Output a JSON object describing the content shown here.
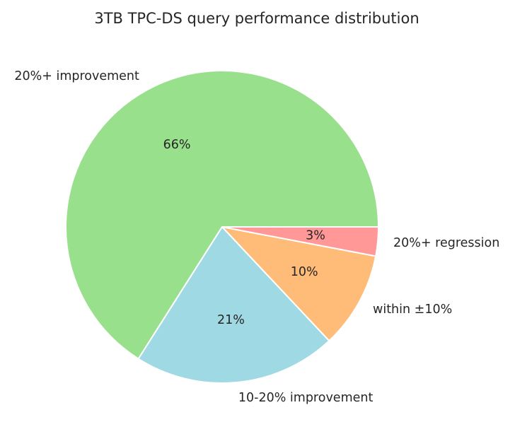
{
  "chart_data": {
    "type": "pie",
    "title": "3TB TPC-DS query performance distribution",
    "categories": [
      "20%+ improvement",
      "10-20% improvement",
      "within ±10%",
      "20%+ regression"
    ],
    "values": [
      66,
      21,
      10,
      3
    ],
    "percent_labels": [
      "66%",
      "21%",
      "10%",
      "3%"
    ],
    "colors": [
      "#99e08c",
      "#9fd9e4",
      "#ffbb78",
      "#ff9896"
    ],
    "start_angle_deg": 0,
    "direction": "counterclockwise",
    "legend": "none"
  }
}
